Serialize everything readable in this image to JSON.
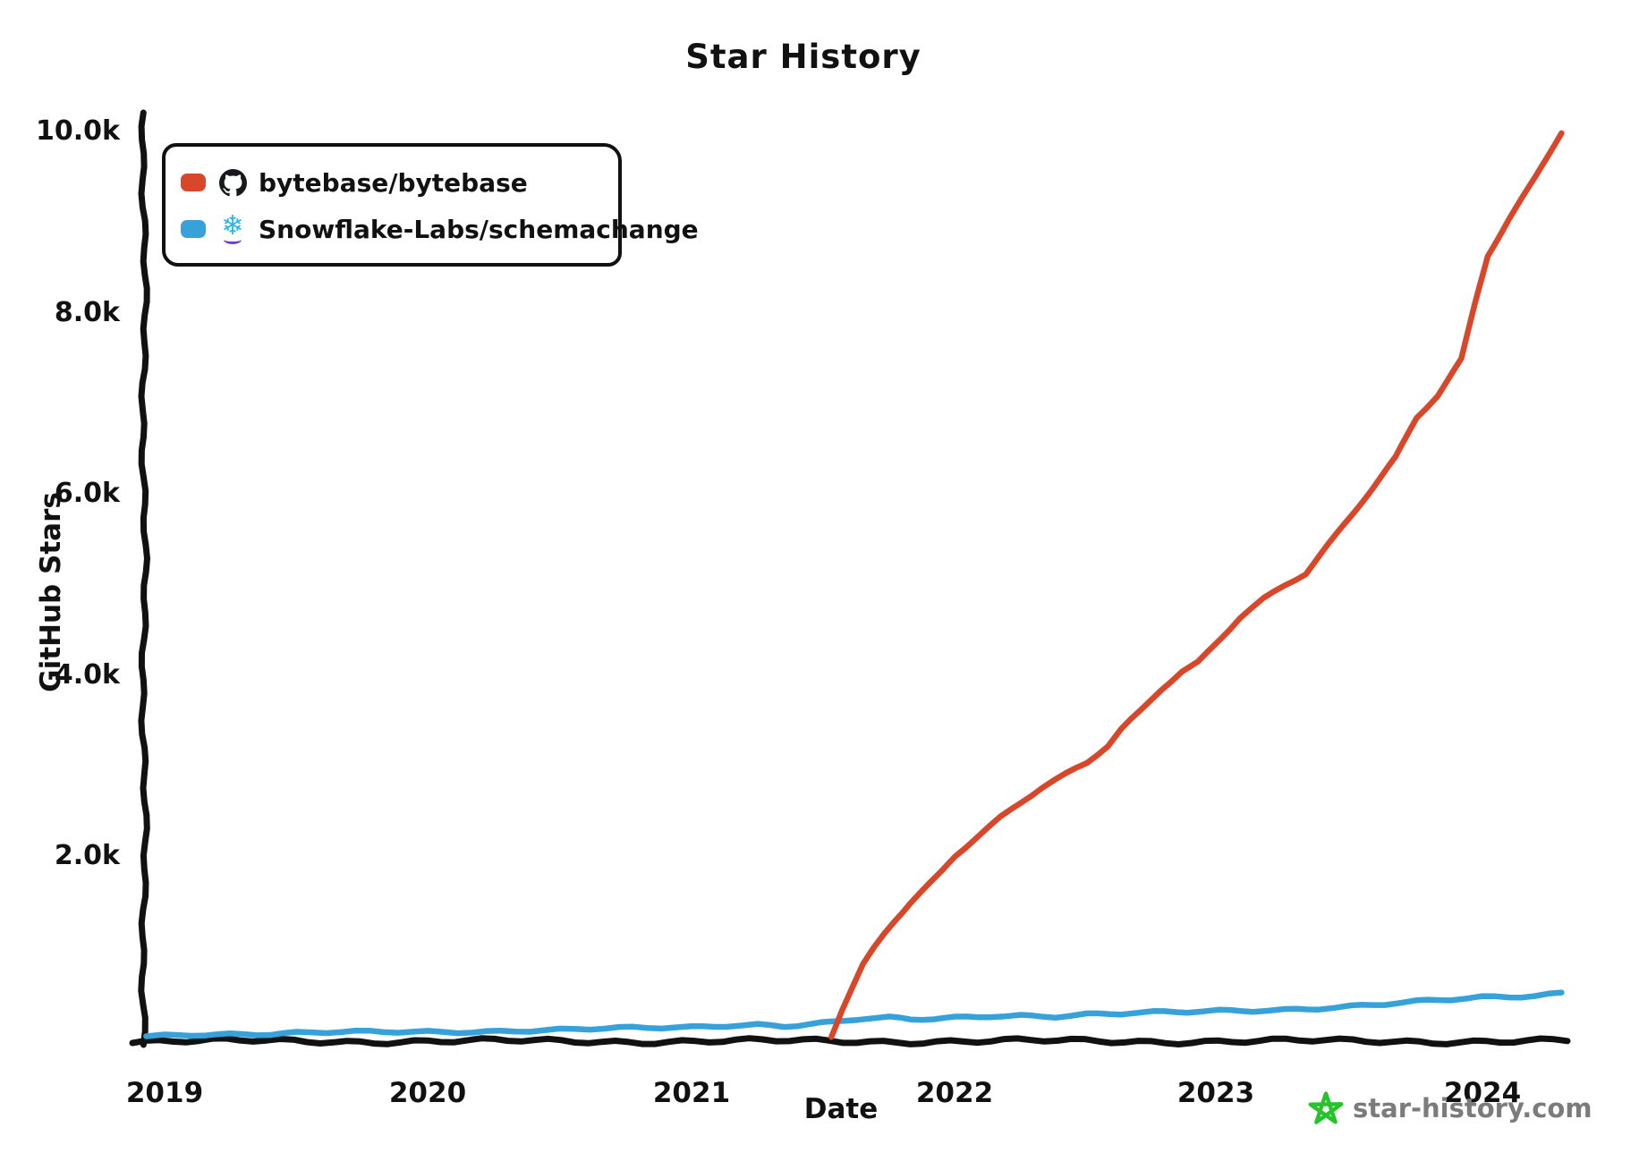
{
  "title": "Star History",
  "legend": [
    {
      "label": "bytebase/bytebase",
      "color": "#d9472b",
      "icon": "github-octocat-icon"
    },
    {
      "label": "Snowflake-Labs/schemachange",
      "color": "#36a2d9",
      "icon": "snowflake-icon",
      "glyph": "❄"
    }
  ],
  "watermark": {
    "site": "star-history.com",
    "star_color": "#26c32b",
    "text_color": "#7b7b7b"
  },
  "chart_data": {
    "type": "line",
    "title": "Star History",
    "xlabel": "Date",
    "ylabel": "GitHub Stars",
    "x_tick_labels": [
      "2019",
      "2020",
      "2021",
      "2022",
      "2023",
      "2024"
    ],
    "y_tick_labels": [
      "2.0k",
      "4.0k",
      "6.0k",
      "8.0k",
      "10.0k"
    ],
    "y_tick_values": [
      2000,
      4000,
      6000,
      8000,
      10000
    ],
    "xlim": [
      2018.9,
      2024.35
    ],
    "ylim": [
      0,
      10000
    ],
    "grid": false,
    "legend_position": "top-left",
    "style": "xkcd-hand-drawn",
    "series": [
      {
        "name": "bytebase/bytebase",
        "color": "#d9472b",
        "x": [
          2021.53,
          2021.57,
          2021.61,
          2021.65,
          2021.69,
          2021.73,
          2021.77,
          2021.83,
          2021.9,
          2021.95,
          2022.0,
          2022.08,
          2022.17,
          2022.25,
          2022.33,
          2022.42,
          2022.5,
          2022.58,
          2022.63,
          2022.7,
          2022.78,
          2022.86,
          2022.92,
          2023.0,
          2023.08,
          2023.17,
          2023.25,
          2023.33,
          2023.42,
          2023.5,
          2023.58,
          2023.67,
          2023.75,
          2023.83,
          2023.92,
          2023.97,
          2024.02,
          2024.1,
          2024.2,
          2024.3
        ],
        "y": [
          10,
          300,
          550,
          800,
          980,
          1150,
          1300,
          1500,
          1700,
          1850,
          2020,
          2220,
          2430,
          2600,
          2760,
          2900,
          3030,
          3220,
          3400,
          3600,
          3850,
          4050,
          4150,
          4400,
          4650,
          4850,
          5000,
          5120,
          5450,
          5750,
          6050,
          6400,
          6850,
          7100,
          7500,
          8100,
          8650,
          9050,
          9500,
          10000
        ]
      },
      {
        "name": "Snowflake-Labs/schemachange",
        "color": "#36a2d9",
        "x": [
          2018.93,
          2019.0,
          2019.1,
          2019.25,
          2019.4,
          2019.5,
          2019.67,
          2019.83,
          2020.0,
          2020.17,
          2020.33,
          2020.5,
          2020.67,
          2020.83,
          2021.0,
          2021.13,
          2021.25,
          2021.35,
          2021.45,
          2021.53,
          2021.63,
          2021.75,
          2021.83,
          2021.92,
          2022.0,
          2022.13,
          2022.25,
          2022.38,
          2022.5,
          2022.63,
          2022.75,
          2022.88,
          2023.0,
          2023.13,
          2023.25,
          2023.38,
          2023.5,
          2023.63,
          2023.75,
          2023.88,
          2024.0,
          2024.1,
          2024.2,
          2024.3
        ],
        "y": [
          15,
          25,
          40,
          45,
          42,
          48,
          55,
          58,
          65,
          72,
          80,
          85,
          95,
          102,
          115,
          140,
          150,
          135,
          150,
          165,
          200,
          210,
          195,
          205,
          220,
          245,
          250,
          240,
          255,
          260,
          270,
          280,
          295,
          305,
          315,
          330,
          345,
          365,
          390,
          415,
          445,
          455,
          470,
          500
        ]
      }
    ]
  }
}
